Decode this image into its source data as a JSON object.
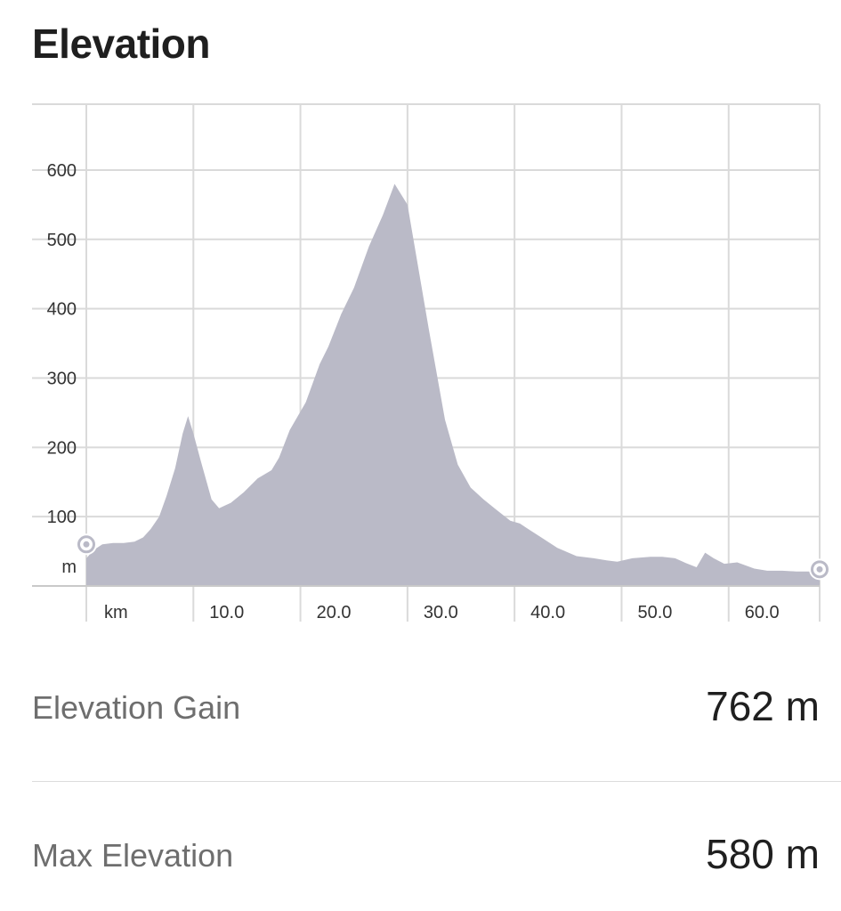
{
  "header": {
    "title": "Elevation"
  },
  "chart_data": {
    "type": "area",
    "title": "",
    "xlabel": "km",
    "ylabel": "m",
    "xlim": [
      0,
      68.5
    ],
    "ylim": [
      0,
      695
    ],
    "x_ticks": [
      10,
      20,
      30,
      40,
      50,
      60
    ],
    "x_tick_labels": [
      "10.0",
      "20.0",
      "30.0",
      "40.0",
      "50.0",
      "60.0"
    ],
    "y_ticks": [
      100,
      200,
      300,
      400,
      500,
      600
    ],
    "y_tick_labels": [
      "100",
      "200",
      "300",
      "400",
      "500",
      "600"
    ],
    "grid": true,
    "fill_color": "#babac7",
    "marker_color": "#babac7",
    "series": [
      {
        "x": [
          0,
          0.7,
          1.5,
          2.5,
          3.5,
          4.5,
          5.3,
          6.0,
          6.8,
          7.5,
          8.3,
          9.0,
          9.5,
          10.0,
          10.7,
          11.7,
          12.4,
          13.5,
          14.7,
          16.0,
          17.3,
          18.0,
          19.0,
          20.5,
          21.8,
          22.6,
          23.8,
          25.0,
          26.4,
          27.7,
          28.8,
          30.0,
          32.0,
          33.5,
          34.7,
          35.9,
          37.1,
          38.3,
          39.6,
          40.5,
          41.3,
          42.5,
          44.0,
          45.8,
          47.4,
          48.6,
          49.6,
          51.0,
          52.7,
          53.8,
          55.0,
          56.0,
          57.0,
          57.8,
          58.6,
          59.6,
          60.8,
          62.4,
          63.6,
          65.0,
          66.3,
          68.5
        ],
        "y": [
          40,
          52,
          60,
          62,
          62,
          64,
          70,
          82,
          100,
          130,
          170,
          220,
          245,
          220,
          180,
          125,
          112,
          120,
          135,
          155,
          167,
          185,
          225,
          265,
          320,
          345,
          392,
          430,
          490,
          535,
          580,
          550,
          370,
          240,
          175,
          142,
          125,
          110,
          94,
          90,
          82,
          70,
          55,
          43,
          40,
          37,
          35,
          40,
          42,
          42,
          40,
          33,
          27,
          48,
          40,
          32,
          34,
          25,
          22,
          22,
          21,
          21
        ]
      }
    ]
  },
  "stats": [
    {
      "label": "Elevation Gain",
      "value": "762 m"
    },
    {
      "label": "Max Elevation",
      "value": "580 m"
    }
  ]
}
